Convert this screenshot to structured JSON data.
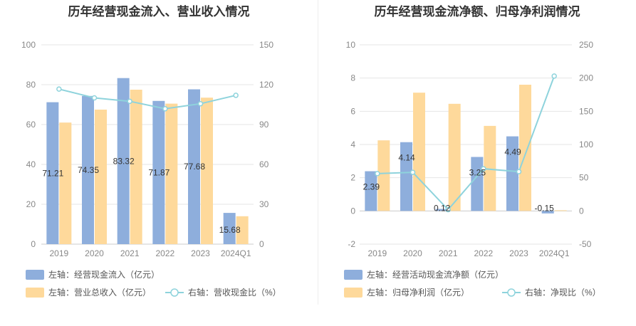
{
  "chart_data": [
    {
      "type": "bar",
      "title": "历年经营现金流入、营业收入情况",
      "categories": [
        "2019",
        "2020",
        "2021",
        "2022",
        "2023",
        "2024Q1"
      ],
      "y_left": {
        "min": 0,
        "max": 100,
        "ticks": [
          0,
          20,
          40,
          60,
          80,
          100
        ]
      },
      "y_right": {
        "min": 0,
        "max": 150,
        "ticks": [
          0,
          30,
          60,
          90,
          120,
          150
        ]
      },
      "series": [
        {
          "name": "左轴：经营现金流入（亿元）",
          "kind": "bar",
          "axis": "left",
          "color": "#8eaedc",
          "values": [
            71.21,
            74.35,
            83.32,
            71.87,
            77.68,
            15.68
          ],
          "labels": [
            "71.21",
            "74.35",
            "83.32",
            "71.87",
            "77.68",
            "15.68"
          ]
        },
        {
          "name": "左轴：营业总收入（亿元）",
          "kind": "bar",
          "axis": "left",
          "color": "#fed99b",
          "values": [
            61.0,
            67.5,
            77.5,
            70.5,
            73.5,
            14.0
          ]
        },
        {
          "name": "右轴：营收现金比（%）",
          "kind": "line",
          "axis": "right",
          "color": "#8ed3dc",
          "values": [
            116.7,
            110.1,
            107.5,
            101.9,
            105.7,
            112.0
          ]
        }
      ]
    },
    {
      "type": "bar",
      "title": "历年经营现金流净额、归母净利润情况",
      "categories": [
        "2019",
        "2020",
        "2021",
        "2022",
        "2023",
        "2024Q1"
      ],
      "y_left": {
        "min": -2,
        "max": 10,
        "ticks": [
          -2,
          0,
          2,
          4,
          6,
          8,
          10
        ]
      },
      "y_right": {
        "min": -50,
        "max": 250,
        "ticks": [
          -50,
          0,
          50,
          100,
          150,
          200,
          250
        ]
      },
      "series": [
        {
          "name": "左轴：经营活动现金流净额（亿元）",
          "kind": "bar",
          "axis": "left",
          "color": "#8eaedc",
          "values": [
            2.39,
            4.14,
            0.12,
            3.25,
            4.49,
            -0.15
          ],
          "labels": [
            "2.39",
            "4.14",
            "0.12",
            "3.25",
            "4.49",
            "-0.15"
          ]
        },
        {
          "name": "左轴：归母净利润（亿元）",
          "kind": "bar",
          "axis": "left",
          "color": "#fed99b",
          "values": [
            4.25,
            7.12,
            6.45,
            5.12,
            7.6,
            0.04
          ]
        },
        {
          "name": "右轴：净现比（%）",
          "kind": "line",
          "axis": "right",
          "color": "#8ed3dc",
          "values": [
            56.2,
            58.1,
            1.9,
            63.5,
            59.1,
            203.0
          ]
        }
      ]
    }
  ]
}
